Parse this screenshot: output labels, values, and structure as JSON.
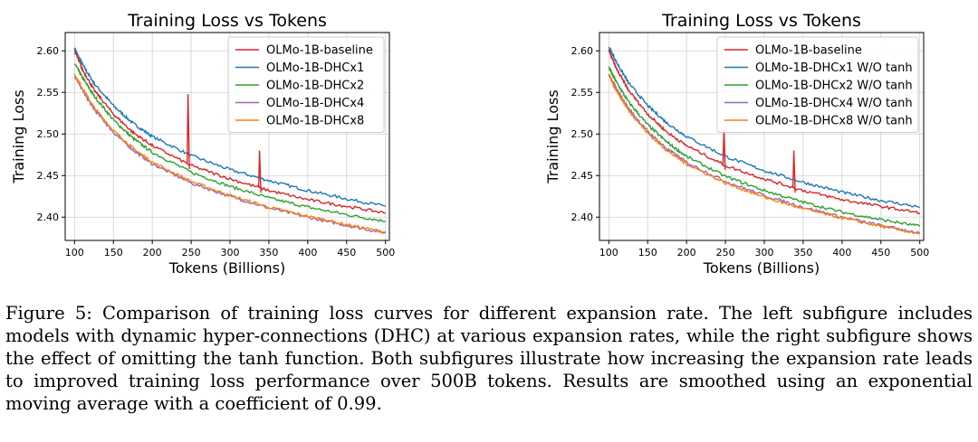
{
  "figure_caption": "Figure 5: Comparison of training loss curves for different expansion rate. The left subfigure includes models with dynamic hyper-connections (DHC) at various expansion rates, while the right subfigure shows the effect of omitting the tanh function. Both subfigures illustrate how increasing the expansion rate leads to improved training loss performance over 500B tokens. Results are smoothed using an exponential moving average with a coefficient of 0.99.",
  "chart_data": [
    {
      "type": "line",
      "title": "Training Loss vs Tokens",
      "xlabel": "Tokens (Billions)",
      "ylabel": "Training Loss",
      "xlim": [
        88,
        505
      ],
      "ylim": [
        2.372,
        2.622
      ],
      "xticks": [
        100,
        150,
        200,
        250,
        300,
        350,
        400,
        450,
        500
      ],
      "yticks": [
        2.4,
        2.45,
        2.5,
        2.55,
        2.6
      ],
      "grid": true,
      "legend": "top-right",
      "x": [
        100,
        110,
        125,
        150,
        175,
        200,
        250,
        300,
        350,
        400,
        450,
        500
      ],
      "series": [
        {
          "name": "OLMo-1B-baseline",
          "color": "#d62728",
          "values": [
            2.6,
            2.578,
            2.553,
            2.524,
            2.502,
            2.486,
            2.462,
            2.446,
            2.432,
            2.421,
            2.413,
            2.405
          ]
        },
        {
          "name": "OLMo-1B-DHCx1",
          "color": "#1f77b4",
          "values": [
            2.603,
            2.584,
            2.561,
            2.534,
            2.513,
            2.497,
            2.474,
            2.457,
            2.444,
            2.432,
            2.422,
            2.413
          ]
        },
        {
          "name": "OLMo-1B-DHCx2",
          "color": "#2ca02c",
          "values": [
            2.585,
            2.568,
            2.546,
            2.517,
            2.495,
            2.478,
            2.454,
            2.437,
            2.423,
            2.412,
            2.403,
            2.395
          ]
        },
        {
          "name": "OLMo-1B-DHCx4",
          "color": "#9467bd",
          "values": [
            2.57,
            2.553,
            2.53,
            2.502,
            2.481,
            2.464,
            2.441,
            2.425,
            2.411,
            2.4,
            2.39,
            2.381
          ]
        },
        {
          "name": "OLMo-1B-DHCx8",
          "color": "#ff7f0e",
          "values": [
            2.572,
            2.555,
            2.532,
            2.504,
            2.483,
            2.466,
            2.443,
            2.426,
            2.412,
            2.401,
            2.391,
            2.382
          ]
        }
      ],
      "spikes": [
        {
          "series": 0,
          "x": 246,
          "y": 2.548
        },
        {
          "series": 0,
          "x": 338,
          "y": 2.48
        }
      ]
    },
    {
      "type": "line",
      "title": "Training Loss vs Tokens",
      "xlabel": "Tokens (Billions)",
      "ylabel": "Training Loss",
      "xlim": [
        88,
        505
      ],
      "ylim": [
        2.372,
        2.622
      ],
      "xticks": [
        100,
        150,
        200,
        250,
        300,
        350,
        400,
        450,
        500
      ],
      "yticks": [
        2.4,
        2.45,
        2.5,
        2.55,
        2.6
      ],
      "grid": true,
      "legend": "top-right",
      "x": [
        100,
        110,
        125,
        150,
        175,
        200,
        250,
        300,
        350,
        400,
        450,
        500
      ],
      "series": [
        {
          "name": "OLMo-1B-baseline",
          "color": "#d62728",
          "values": [
            2.6,
            2.578,
            2.553,
            2.524,
            2.502,
            2.486,
            2.462,
            2.446,
            2.432,
            2.421,
            2.413,
            2.405
          ]
        },
        {
          "name": "OLMo-1B-DHCx1 W/O tanh",
          "color": "#1f77b4",
          "values": [
            2.605,
            2.586,
            2.562,
            2.534,
            2.513,
            2.497,
            2.473,
            2.456,
            2.442,
            2.43,
            2.42,
            2.412
          ]
        },
        {
          "name": "OLMo-1B-DHCx2  W/O tanh",
          "color": "#2ca02c",
          "values": [
            2.58,
            2.562,
            2.539,
            2.511,
            2.49,
            2.473,
            2.449,
            2.432,
            2.418,
            2.406,
            2.397,
            2.389
          ]
        },
        {
          "name": "OLMo-1B-DHCx4  W/O tanh",
          "color": "#9467bd",
          "values": [
            2.572,
            2.554,
            2.531,
            2.503,
            2.482,
            2.466,
            2.443,
            2.426,
            2.412,
            2.4,
            2.39,
            2.381
          ]
        },
        {
          "name": "OLMo-1B-DHCx8  W/O tanh",
          "color": "#ff7f0e",
          "values": [
            2.57,
            2.552,
            2.529,
            2.501,
            2.48,
            2.464,
            2.441,
            2.424,
            2.41,
            2.399,
            2.389,
            2.38
          ]
        }
      ],
      "spikes": [
        {
          "series": 0,
          "x": 248,
          "y": 2.505
        },
        {
          "series": 0,
          "x": 338,
          "y": 2.48
        }
      ]
    }
  ]
}
